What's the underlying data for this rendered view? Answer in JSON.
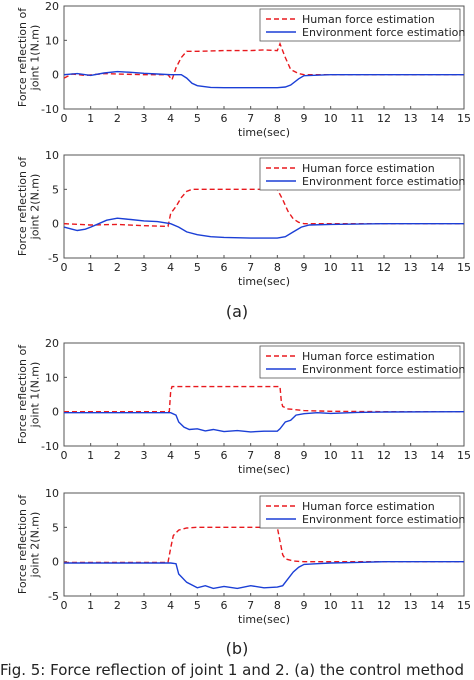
{
  "figure": {
    "panel_a_label": "(a)",
    "panel_b_label": "(b)",
    "caption": "Fig. 5: Force reflection of joint 1 and 2. (a) the control method"
  },
  "colors": {
    "human": "#e8191e",
    "environment": "#1b3fd6",
    "axis": "#555555"
  },
  "chart_data": [
    {
      "type": "line",
      "panel": "a",
      "xlabel": "time(sec)",
      "ylabel": [
        "Force reflection of",
        "joint 1(N.m)"
      ],
      "xlim": [
        0,
        15
      ],
      "ylim": [
        -10,
        20
      ],
      "xticks": [
        0,
        1,
        2,
        3,
        4,
        5,
        6,
        7,
        8,
        9,
        10,
        11,
        12,
        13,
        14,
        15
      ],
      "yticks": [
        -10,
        0,
        10,
        20
      ],
      "legend": "top-right",
      "series": [
        {
          "name": "Human force estimation",
          "style": "dashed",
          "x": [
            0,
            0.3,
            0.8,
            1.5,
            2,
            3,
            3.9,
            4.05,
            4.2,
            4.4,
            4.6,
            5,
            6,
            7,
            7.5,
            8,
            8.1,
            8.3,
            8.5,
            8.8,
            9,
            10,
            12,
            15
          ],
          "y": [
            -1,
            0.2,
            -0.2,
            0.3,
            0.2,
            0,
            0,
            -1.5,
            2,
            5,
            6.8,
            6.8,
            7,
            7,
            7.2,
            7,
            9,
            5,
            1.5,
            0.3,
            0,
            0,
            0,
            0
          ]
        },
        {
          "name": "Environment force estimation",
          "style": "solid",
          "x": [
            0,
            0.5,
            1,
            1.5,
            2,
            2.5,
            3,
            3.5,
            4,
            4.4,
            4.6,
            4.8,
            5,
            5.5,
            6,
            7,
            8,
            8.3,
            8.5,
            8.8,
            9,
            10,
            12,
            15
          ],
          "y": [
            0,
            0.3,
            -0.2,
            0.5,
            0.9,
            0.7,
            0.4,
            0.2,
            0,
            0,
            -1,
            -2.5,
            -3.2,
            -3.7,
            -3.8,
            -3.8,
            -3.8,
            -3.6,
            -3,
            -1.2,
            -0.3,
            0,
            0,
            0
          ]
        }
      ]
    },
    {
      "type": "line",
      "panel": "a",
      "xlabel": "time(sec)",
      "ylabel": [
        "Force reflection of",
        "joint 2(N.m)"
      ],
      "xlim": [
        0,
        15
      ],
      "ylim": [
        -5,
        10
      ],
      "xticks": [
        0,
        1,
        2,
        3,
        4,
        5,
        6,
        7,
        8,
        9,
        10,
        11,
        12,
        13,
        14,
        15
      ],
      "yticks": [
        -5,
        0,
        5,
        10
      ],
      "legend": "top-right",
      "series": [
        {
          "name": "Human force estimation",
          "style": "dashed",
          "x": [
            0,
            1,
            2,
            3,
            3.9,
            4,
            4.2,
            4.4,
            4.6,
            4.8,
            5,
            6,
            7,
            8,
            8.2,
            8.4,
            8.6,
            8.8,
            9,
            10,
            12,
            15
          ],
          "y": [
            0,
            -0.2,
            -0.1,
            -0.3,
            -0.4,
            1.5,
            2.5,
            3.8,
            4.7,
            5,
            5,
            5,
            5,
            5,
            3.5,
            1.8,
            0.7,
            0.2,
            0,
            0,
            0,
            0
          ]
        },
        {
          "name": "Environment force estimation",
          "style": "solid",
          "x": [
            0,
            0.3,
            0.5,
            0.8,
            1,
            1.3,
            1.6,
            2,
            2.5,
            3,
            3.5,
            4,
            4.3,
            4.6,
            5,
            5.5,
            6,
            7,
            8,
            8.3,
            8.6,
            8.9,
            9.2,
            10,
            12,
            15
          ],
          "y": [
            -0.5,
            -0.8,
            -1,
            -0.8,
            -0.5,
            0,
            0.5,
            0.8,
            0.6,
            0.4,
            0.3,
            0,
            -0.5,
            -1.2,
            -1.6,
            -1.9,
            -2,
            -2.1,
            -2.1,
            -1.9,
            -1.2,
            -0.5,
            -0.2,
            -0.1,
            0,
            0
          ]
        }
      ]
    },
    {
      "type": "line",
      "panel": "b",
      "xlabel": "time(sec)",
      "ylabel": [
        "Force reflection of",
        "joint 1(N.m)"
      ],
      "xlim": [
        0,
        15
      ],
      "ylim": [
        -10,
        20
      ],
      "xticks": [
        0,
        1,
        2,
        3,
        4,
        5,
        6,
        7,
        8,
        9,
        10,
        11,
        12,
        13,
        14,
        15
      ],
      "yticks": [
        -10,
        0,
        10,
        20
      ],
      "legend": "top-right",
      "series": [
        {
          "name": "Human force estimation",
          "style": "dashed",
          "x": [
            0,
            1,
            2,
            3,
            3.95,
            4,
            4.05,
            5,
            6,
            7,
            8,
            8.1,
            8.15,
            8.2,
            8.4,
            9,
            10,
            12,
            15
          ],
          "y": [
            0,
            0,
            0,
            0,
            0,
            6,
            7.3,
            7.3,
            7.3,
            7.3,
            7.3,
            7.3,
            3,
            1.5,
            0.8,
            0.3,
            0.1,
            0,
            0
          ]
        },
        {
          "name": "Environment force estimation",
          "style": "solid",
          "x": [
            0,
            1,
            2,
            3,
            4,
            4.2,
            4.3,
            4.5,
            4.7,
            5,
            5.3,
            5.6,
            6,
            6.5,
            7,
            7.5,
            8,
            8.1,
            8.3,
            8.5,
            8.7,
            9,
            9.5,
            10,
            11,
            12,
            15
          ],
          "y": [
            -0.3,
            -0.3,
            -0.3,
            -0.3,
            -0.3,
            -1,
            -3,
            -4.5,
            -5.2,
            -5,
            -5.6,
            -5.2,
            -5.8,
            -5.5,
            -5.9,
            -5.7,
            -5.7,
            -5,
            -3,
            -2.5,
            -1,
            -0.6,
            -0.3,
            -0.5,
            -0.2,
            -0.1,
            0
          ]
        }
      ]
    },
    {
      "type": "line",
      "panel": "b",
      "xlabel": "time(sec)",
      "ylabel": [
        "Force reflection of",
        "joint 2(N.m)"
      ],
      "xlim": [
        0,
        15
      ],
      "ylim": [
        -5,
        10
      ],
      "xticks": [
        0,
        1,
        2,
        3,
        4,
        5,
        6,
        7,
        8,
        9,
        10,
        11,
        12,
        13,
        14,
        15
      ],
      "yticks": [
        -5,
        0,
        5,
        10
      ],
      "legend": "top-right",
      "series": [
        {
          "name": "Human force estimation",
          "style": "dashed",
          "x": [
            0,
            1,
            2,
            3,
            3.9,
            4,
            4.1,
            4.3,
            4.6,
            5,
            6,
            7,
            8,
            8.1,
            8.2,
            8.3,
            8.6,
            9,
            10,
            12,
            15
          ],
          "y": [
            -0.1,
            -0.1,
            -0.1,
            -0.1,
            -0.1,
            2,
            3.8,
            4.6,
            4.9,
            5,
            5,
            5,
            5,
            3,
            1,
            0.4,
            0.1,
            0,
            0,
            0,
            0
          ]
        },
        {
          "name": "Environment force estimation",
          "style": "solid",
          "x": [
            0,
            1,
            2,
            3,
            4,
            4.2,
            4.3,
            4.6,
            4.8,
            5,
            5.3,
            5.6,
            6,
            6.5,
            7,
            7.5,
            8,
            8.2,
            8.4,
            8.6,
            8.8,
            9,
            9.5,
            10,
            11,
            12,
            15
          ],
          "y": [
            -0.2,
            -0.2,
            -0.2,
            -0.2,
            -0.2,
            -0.3,
            -1.8,
            -3,
            -3.4,
            -3.8,
            -3.5,
            -3.9,
            -3.6,
            -3.9,
            -3.5,
            -3.8,
            -3.7,
            -3.5,
            -2.5,
            -1.5,
            -0.8,
            -0.4,
            -0.3,
            -0.2,
            -0.1,
            0,
            0
          ]
        }
      ]
    }
  ]
}
